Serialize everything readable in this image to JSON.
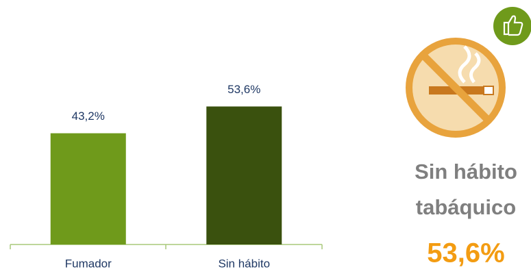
{
  "chart_data": {
    "type": "bar",
    "categories": [
      "Fumador",
      "Sin hábito"
    ],
    "values": [
      43.2,
      53.6
    ],
    "value_labels": [
      "43,2%",
      "53,6%"
    ],
    "colors": [
      "#6f9a1b",
      "#3a510e"
    ]
  },
  "callout": {
    "lines": [
      "Sin hábito",
      "tabáquico"
    ],
    "value": "53,6%"
  }
}
